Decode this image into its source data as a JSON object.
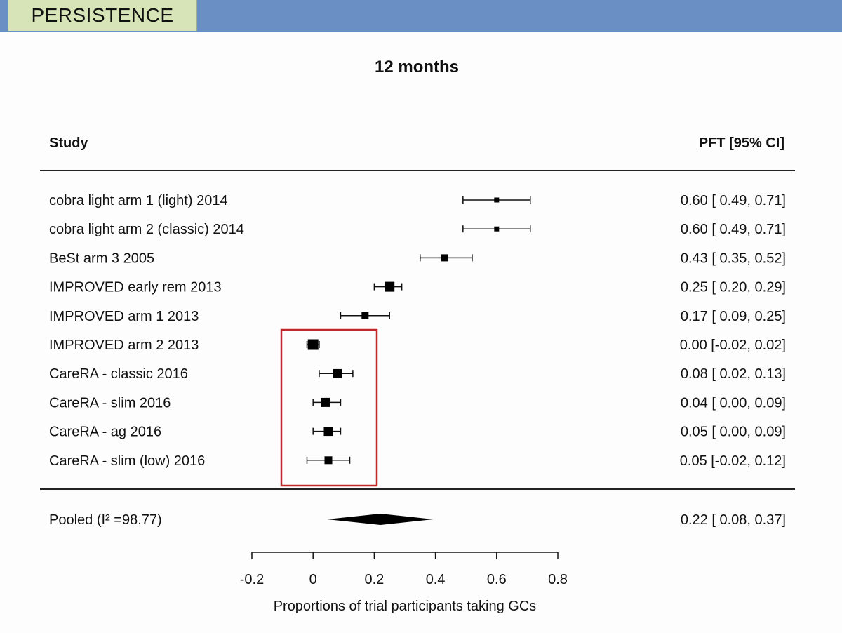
{
  "slide": {
    "section_tab": "PERSISTENCE",
    "accent_bar_color": "#6a8fc4",
    "tab_color": "#d6e4b8",
    "highlight_box_color": "#c0282a"
  },
  "chart_data": {
    "type": "forest",
    "title": "12 months",
    "columns": {
      "left": "Study",
      "right": "PFT [95% CI]"
    },
    "xlabel": "Proportions of trial participants taking GCs",
    "xlim": [
      -0.2,
      0.8
    ],
    "xticks": [
      -0.2,
      0,
      0.2,
      0.4,
      0.6,
      0.8
    ],
    "xtick_labels": [
      "-0.2",
      "0",
      "0.2",
      "0.4",
      "0.6",
      "0.8"
    ],
    "studies": [
      {
        "name": "cobra light arm 1 (light) 2014",
        "est": 0.6,
        "lo": 0.49,
        "hi": 0.71,
        "text": "0.60 [ 0.49, 0.71]",
        "weight": 0.3
      },
      {
        "name": "cobra light arm 2 (classic) 2014",
        "est": 0.6,
        "lo": 0.49,
        "hi": 0.71,
        "text": "0.60 [ 0.49, 0.71]",
        "weight": 0.3
      },
      {
        "name": "BeSt arm 3 2005",
        "est": 0.43,
        "lo": 0.35,
        "hi": 0.52,
        "text": "0.43 [ 0.35, 0.52]",
        "weight": 0.6
      },
      {
        "name": "IMPROVED early rem 2013",
        "est": 0.25,
        "lo": 0.2,
        "hi": 0.29,
        "text": "0.25 [ 0.20, 0.29]",
        "weight": 1.0
      },
      {
        "name": "IMPROVED arm 1 2013",
        "est": 0.17,
        "lo": 0.09,
        "hi": 0.25,
        "text": "0.17 [ 0.09, 0.25]",
        "weight": 0.6
      },
      {
        "name": "IMPROVED arm 2 2013",
        "est": 0.0,
        "lo": -0.02,
        "hi": 0.02,
        "text": "0.00 [-0.02, 0.02]",
        "weight": 1.1
      },
      {
        "name": "CareRA - classic 2016",
        "est": 0.08,
        "lo": 0.02,
        "hi": 0.13,
        "text": "0.08 [ 0.02, 0.13]",
        "weight": 0.85
      },
      {
        "name": "CareRA - slim 2016",
        "est": 0.04,
        "lo": 0.0,
        "hi": 0.09,
        "text": "0.04 [ 0.00, 0.09]",
        "weight": 0.9
      },
      {
        "name": "CareRA - ag 2016",
        "est": 0.05,
        "lo": 0.0,
        "hi": 0.09,
        "text": "0.05 [ 0.00, 0.09]",
        "weight": 0.9
      },
      {
        "name": "CareRA - slim (low) 2016",
        "est": 0.05,
        "lo": -0.02,
        "hi": 0.12,
        "text": "0.05 [-0.02, 0.12]",
        "weight": 0.7
      }
    ],
    "pooled": {
      "name": "Pooled (I² =98.77)",
      "est": 0.22,
      "lo": 0.08,
      "hi": 0.37,
      "text": "0.22 [ 0.08, 0.37]"
    },
    "highlighted_studies": [
      "IMPROVED arm 2 2013",
      "CareRA - classic 2016",
      "CareRA - slim 2016",
      "CareRA - ag 2016",
      "CareRA - slim (low) 2016"
    ]
  }
}
